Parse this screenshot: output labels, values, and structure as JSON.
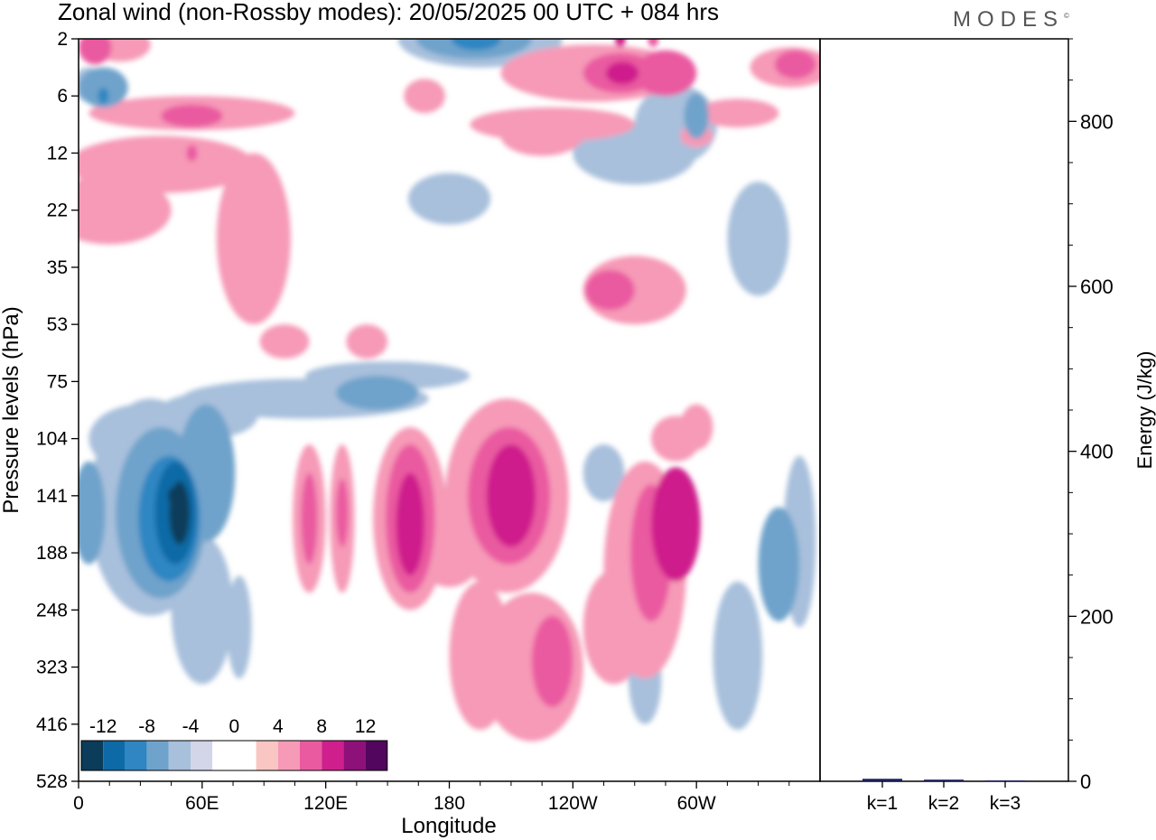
{
  "title": "Zonal wind (non-Rossby modes):  20/05/2025  00 UTC  + 084 hrs",
  "logo": "MODES",
  "colors": {
    "neg": [
      "#0b3c5a",
      "#0d6aa6",
      "#2f86c2",
      "#6fa3cb",
      "#a8c0dc",
      "#d3d6e9"
    ],
    "pos": [
      "#f9c6c3",
      "#f69ab7",
      "#ea5aa0",
      "#cf1f8c",
      "#8e1079",
      "#52065e"
    ]
  },
  "chart_data": [
    {
      "type": "heatmap",
      "title": "Zonal wind (non-Rossby modes):  20/05/2025  00 UTC  + 084 hrs",
      "xlabel": "Longitude",
      "ylabel": "Pressure levels (hPa)",
      "x_ticks": [
        "0",
        "60E",
        "120E",
        "180",
        "120W",
        "60W"
      ],
      "x_tick_values": [
        0,
        60,
        120,
        180,
        240,
        300
      ],
      "xlim": [
        0,
        360
      ],
      "y_ticks": [
        "2",
        "6",
        "12",
        "22",
        "35",
        "53",
        "75",
        "104",
        "141",
        "188",
        "248",
        "323",
        "416",
        "528"
      ],
      "colorbar": {
        "labels": [
          "-12",
          "-8",
          "-4",
          "0",
          "4",
          "8",
          "12"
        ],
        "levels": [
          -12,
          -10,
          -8,
          -6,
          -4,
          -2,
          0,
          2,
          4,
          6,
          8,
          10,
          12
        ],
        "placement": "bottom-left"
      },
      "features": [
        {
          "lon": 49,
          "level": "141",
          "value": -13
        },
        {
          "lon": 46,
          "level": "141",
          "value": -11
        },
        {
          "lon": 12,
          "level": "6",
          "value": -6
        },
        {
          "lon": 193,
          "level": "2",
          "value": -7
        },
        {
          "lon": 161,
          "level": "141",
          "value": 6
        },
        {
          "lon": 210,
          "level": "141",
          "value": 6
        },
        {
          "lon": 263,
          "level": "2",
          "value": 6
        },
        {
          "lon": 279,
          "level": "2",
          "value": 4
        },
        {
          "lon": 55,
          "level": "12",
          "value": 4
        }
      ]
    },
    {
      "type": "bar",
      "ylabel": "Energy (J/kg)",
      "categories": [
        "k=1",
        "k=2",
        "k=3"
      ],
      "values": [
        3,
        2,
        1
      ],
      "ylim": [
        0,
        900
      ],
      "y_ticks": [
        "0",
        "200",
        "400",
        "600",
        "800"
      ],
      "y_tick_values": [
        0,
        200,
        400,
        600,
        800
      ]
    }
  ]
}
